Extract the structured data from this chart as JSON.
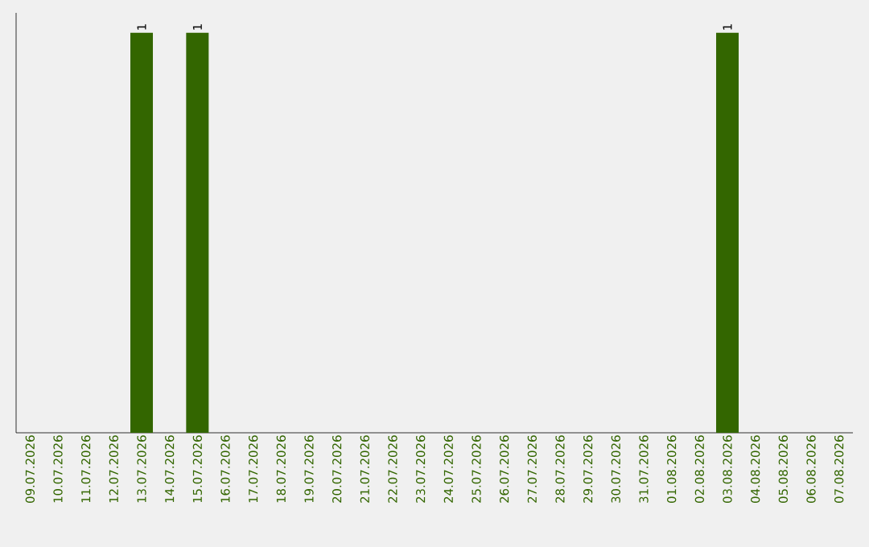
{
  "chart_data": {
    "type": "bar",
    "categories": [
      "09.07.2026",
      "10.07.2026",
      "11.07.2026",
      "12.07.2026",
      "13.07.2026",
      "14.07.2026",
      "15.07.2026",
      "16.07.2026",
      "17.07.2026",
      "18.07.2026",
      "19.07.2026",
      "20.07.2026",
      "21.07.2026",
      "22.07.2026",
      "23.07.2026",
      "24.07.2026",
      "25.07.2026",
      "26.07.2026",
      "27.07.2026",
      "28.07.2026",
      "29.07.2026",
      "30.07.2026",
      "31.07.2026",
      "01.08.2026",
      "02.08.2026",
      "03.08.2026",
      "04.08.2026",
      "05.08.2026",
      "06.08.2026",
      "07.08.2026"
    ],
    "values": [
      0,
      0,
      0,
      0,
      1,
      0,
      1,
      0,
      0,
      0,
      0,
      0,
      0,
      0,
      0,
      0,
      0,
      0,
      0,
      0,
      0,
      0,
      0,
      0,
      0,
      1,
      0,
      0,
      0,
      0
    ],
    "value_labels": [
      null,
      null,
      null,
      null,
      "1",
      null,
      "1",
      null,
      null,
      null,
      null,
      null,
      null,
      null,
      null,
      null,
      null,
      null,
      null,
      null,
      null,
      null,
      null,
      null,
      null,
      "1",
      null,
      null,
      null,
      null
    ],
    "color": "#336600",
    "ylim": [
      0,
      1.05
    ],
    "tick_labels": "x"
  }
}
